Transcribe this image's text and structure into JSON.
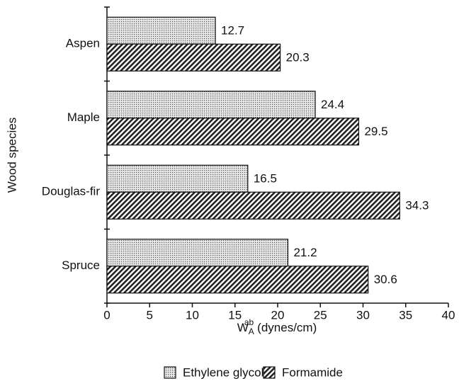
{
  "chart_data": {
    "type": "bar",
    "orientation": "horizontal",
    "y_label": "Wood species",
    "x_label": {
      "base": "W",
      "sub": "A",
      "sup": "ab",
      "unit": "(dynes/cm)"
    },
    "categories": [
      "Aspen",
      "Maple",
      "Douglas-fir",
      "Spruce"
    ],
    "series": [
      {
        "name": "Ethylene glycol",
        "color": "#555555",
        "pattern": "dots",
        "values": [
          12.7,
          24.4,
          16.5,
          21.2
        ]
      },
      {
        "name": "Formamide",
        "color": "#222222",
        "pattern": "hatch",
        "values": [
          20.3,
          29.5,
          34.3,
          30.6
        ]
      }
    ],
    "xlim": [
      0,
      40
    ],
    "xticks": [
      0,
      5,
      10,
      15,
      20,
      25,
      30,
      35,
      40
    ],
    "legend": "bottom"
  }
}
